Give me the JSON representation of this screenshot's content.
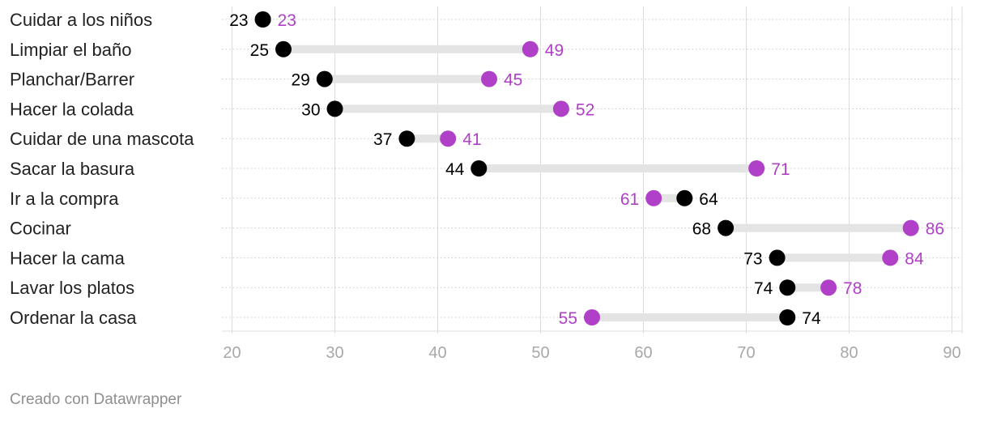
{
  "chart_data": {
    "type": "dumbbell",
    "title": "",
    "xlabel": "",
    "ylabel": "",
    "xlim": [
      19,
      91
    ],
    "xticks": [
      20,
      30,
      40,
      50,
      60,
      70,
      80,
      90
    ],
    "grid": true,
    "colors": {
      "series_a": "#000000",
      "series_b": "#b040c8",
      "connector": "#e4e4e4"
    },
    "series": [
      {
        "name": "",
        "color": "#000000"
      },
      {
        "name": "",
        "color": "#b040c8"
      }
    ],
    "rows": [
      {
        "label": "Cuidar a los niños",
        "a": 23,
        "b": 23
      },
      {
        "label": "Limpiar el baño",
        "a": 25,
        "b": 49
      },
      {
        "label": "Planchar/Barrer",
        "a": 29,
        "b": 45
      },
      {
        "label": "Hacer la colada",
        "a": 30,
        "b": 52
      },
      {
        "label": "Cuidar de una mascota",
        "a": 37,
        "b": 41
      },
      {
        "label": "Sacar la basura",
        "a": 44,
        "b": 71
      },
      {
        "label": "Ir a la compra",
        "a": 64,
        "b": 61
      },
      {
        "label": "Cocinar",
        "a": 68,
        "b": 86
      },
      {
        "label": "Hacer la cama",
        "a": 73,
        "b": 84
      },
      {
        "label": "Lavar los platos",
        "a": 74,
        "b": 78
      },
      {
        "label": "Ordenar la casa",
        "a": 74,
        "b": 55
      }
    ]
  },
  "footer": {
    "credit": "Creado con Datawrapper"
  }
}
